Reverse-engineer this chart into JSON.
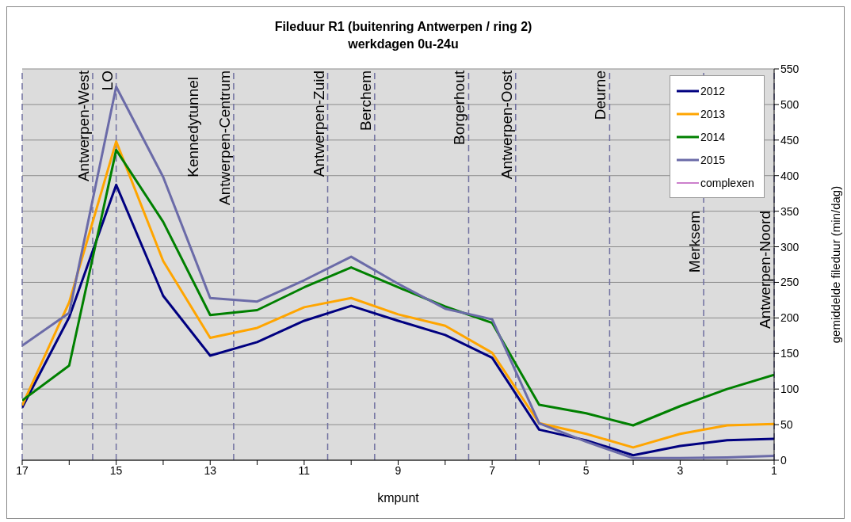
{
  "chart_data": {
    "type": "line",
    "title": "Fileduur R1 (buitenring Antwerpen / ring 2)",
    "subtitle": "werkdagen 0u-24u",
    "xlabel": "kmpunt",
    "ylabel": "gemiddelde fileduur  (min/dag)",
    "x": [
      17,
      16,
      15,
      14,
      13,
      12,
      11,
      10,
      9,
      8,
      7,
      6,
      5,
      4,
      3,
      2,
      1
    ],
    "series": [
      {
        "name": "2012",
        "color": "#000080",
        "values": [
          74,
          201,
          387,
          231,
          147,
          166,
          196,
          217,
          196,
          176,
          144,
          43,
          28,
          7,
          20,
          28,
          30
        ]
      },
      {
        "name": "2013",
        "color": "#ffa500",
        "values": [
          77,
          222,
          448,
          280,
          172,
          186,
          215,
          228,
          205,
          189,
          151,
          52,
          37,
          18,
          37,
          49,
          51
        ]
      },
      {
        "name": "2014",
        "color": "#008000",
        "values": [
          84,
          133,
          436,
          335,
          204,
          211,
          243,
          271,
          243,
          216,
          193,
          78,
          66,
          49,
          76,
          100,
          120
        ]
      },
      {
        "name": "2015",
        "color": "#6b6ba8",
        "values": [
          161,
          207,
          525,
          398,
          228,
          223,
          253,
          286,
          248,
          213,
          198,
          52,
          26,
          3,
          3,
          4,
          6
        ]
      },
      {
        "name": "complexen",
        "color": "#990099",
        "values": [
          null,
          null,
          null,
          null,
          null,
          null,
          null,
          null,
          null,
          null,
          null,
          null,
          null,
          null,
          null,
          null,
          null
        ]
      }
    ],
    "xlim": [
      17,
      1
    ],
    "xticks": [
      17,
      {
        "value": 16,
        "label": null
      },
      15,
      {
        "value": 14,
        "label": null
      },
      13,
      {
        "value": 12,
        "label": null
      },
      11,
      {
        "value": 10,
        "label": null
      },
      9,
      {
        "value": 8,
        "label": null
      },
      7,
      {
        "value": 6,
        "label": null
      },
      5,
      {
        "value": 4,
        "label": null
      },
      3,
      {
        "value": 2,
        "label": null
      },
      1
    ],
    "ylim": [
      0,
      550
    ],
    "yticks": [
      0,
      50,
      100,
      150,
      200,
      250,
      300,
      350,
      400,
      450,
      500,
      550
    ],
    "grid": "y",
    "legend": "top right",
    "marker": "none",
    "line_style": "solid",
    "ref_lines": [
      {
        "axis": "x",
        "value": 17,
        "color": "#7070a0",
        "line_style": "dashed"
      },
      {
        "axis": "x",
        "value": 15.5,
        "label": "Antwerpen-West",
        "color": "#7070a0",
        "line_style": "dashed"
      },
      {
        "axis": "x",
        "value": 15,
        "label": "LO",
        "color": "#7070a0",
        "line_style": "dashed"
      },
      {
        "axis": "x",
        "value": 12.5,
        "label": "Antwerpen-Centrum",
        "color": "#7070a0",
        "line_style": "dashed"
      },
      {
        "axis": "x",
        "value": 10.5,
        "label": "Antwerpen-Zuid",
        "color": "#7070a0",
        "line_style": "dashed"
      },
      {
        "axis": "x",
        "value": 9.5,
        "label": "Berchem",
        "color": "#7070a0",
        "line_style": "dashed"
      },
      {
        "axis": "x",
        "value": 7.5,
        "label": "Borgerhout",
        "color": "#7070a0",
        "line_style": "dashed"
      },
      {
        "axis": "x",
        "value": 6.5,
        "label": "Antwerpen-Oost",
        "color": "#7070a0",
        "line_style": "dashed"
      },
      {
        "axis": "x",
        "value": 4.5,
        "label": "Deurne",
        "color": "#7070a0",
        "line_style": "dashed"
      },
      {
        "axis": "x",
        "value": 2.5,
        "label": "Merksem",
        "color": "#7070a0",
        "line_style": "dashed"
      },
      {
        "axis": "x",
        "value": 1,
        "label": "Antwerpen-Noord",
        "color": "#7070a0",
        "line_style": "dashed"
      }
    ],
    "annotations": [
      "Kennedytunnel"
    ]
  }
}
